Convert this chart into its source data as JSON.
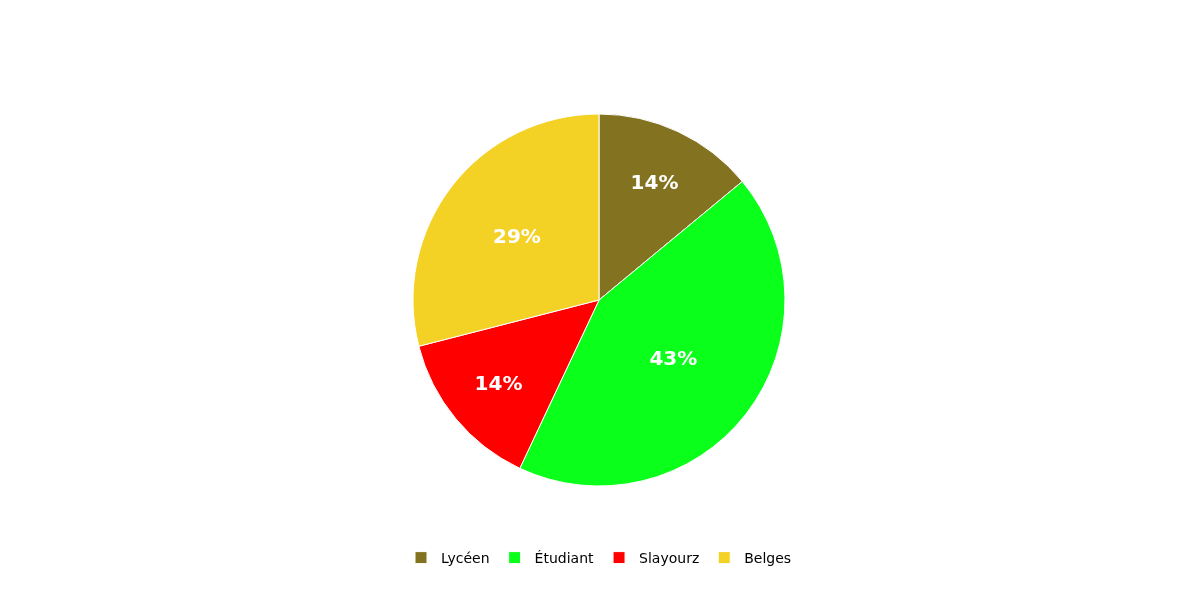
{
  "chart_data": {
    "type": "pie",
    "categories": [
      "Lycéen",
      "Étudiant",
      "Slayourz",
      "Belges"
    ],
    "values": [
      14,
      43,
      14,
      29
    ],
    "colors": [
      "#837321",
      "#0aff1a",
      "#ff0000",
      "#f4d125"
    ],
    "value_labels": [
      "14%",
      "43%",
      "14%",
      "29%"
    ],
    "legend": "bottom"
  }
}
